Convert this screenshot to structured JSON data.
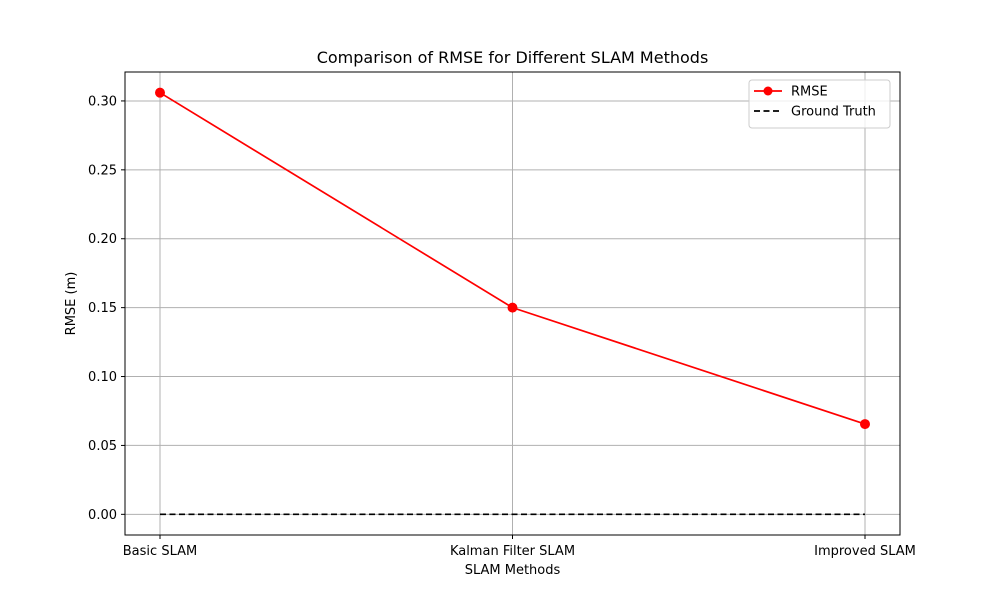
{
  "chart_data": {
    "type": "line",
    "title": "Comparison of RMSE for Different SLAM Methods",
    "xlabel": "SLAM Methods",
    "ylabel": "RMSE (m)",
    "categories": [
      "Basic SLAM",
      "Kalman Filter SLAM",
      "Improved SLAM"
    ],
    "ylim": [
      -0.015,
      0.321
    ],
    "yticks": [
      0.0,
      0.05,
      0.1,
      0.15,
      0.2,
      0.25,
      0.3
    ],
    "ytick_labels": [
      "0.00",
      "0.05",
      "0.10",
      "0.15",
      "0.20",
      "0.25",
      "0.30"
    ],
    "grid": true,
    "legend_position": "top-right",
    "series": [
      {
        "name": "RMSE",
        "values": [
          0.306,
          0.15,
          0.0655
        ],
        "color": "#ff0000",
        "line_style": "solid",
        "marker": "circle"
      },
      {
        "name": "Ground Truth",
        "values": [
          0.0,
          0.0,
          0.0
        ],
        "color": "#000000",
        "line_style": "dashed",
        "marker": "none"
      }
    ]
  }
}
